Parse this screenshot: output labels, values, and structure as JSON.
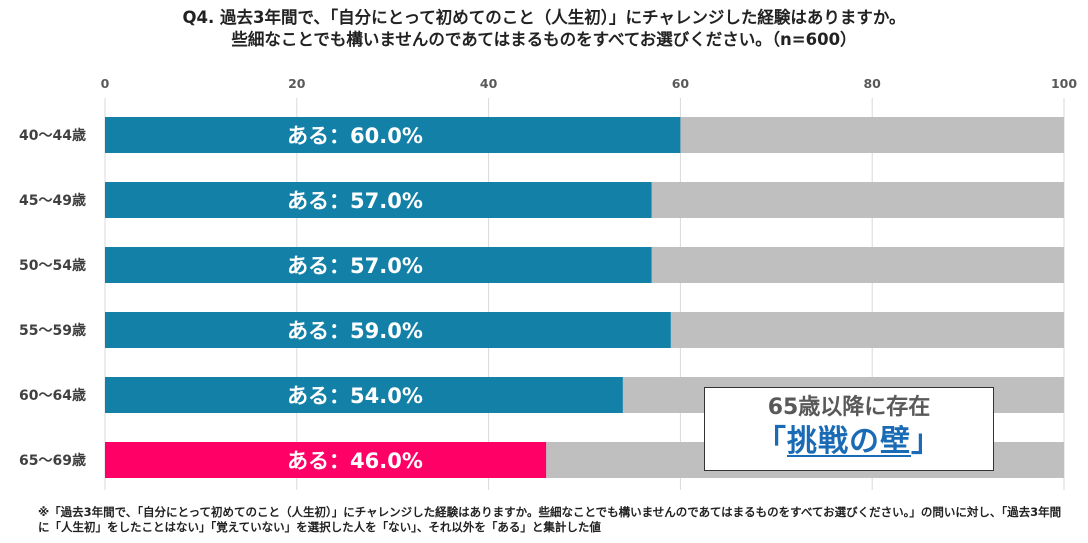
{
  "title": {
    "line1": "Q4.  過去3年間で、「自分にとって初めてのこと（人生初）」にチャレンジした経験はありますか。",
    "line2": "些細なことでも構いませんのであてはまるものをすべてお選びください。（n=600）"
  },
  "colors": {
    "bar": "#1380a8",
    "highlight": "#ff0066",
    "remainder": "#bfbfbf",
    "grid": "#d9d9d9",
    "callout_accent": "#1a6bb5"
  },
  "chart_data": {
    "type": "bar",
    "orientation": "horizontal",
    "stacked": true,
    "categories": [
      "40～44歳",
      "45～49歳",
      "50～54歳",
      "55～59歳",
      "60～64歳",
      "65～69歳"
    ],
    "series": [
      {
        "name": "ある",
        "values": [
          60.0,
          57.0,
          57.0,
          59.0,
          54.0,
          46.0
        ]
      },
      {
        "name": "ない",
        "values": [
          40.0,
          43.0,
          43.0,
          41.0,
          46.0,
          54.0
        ]
      }
    ],
    "highlight_category": "65～69歳",
    "data_labels": [
      "ある：60.0%",
      "ある：57.0%",
      "ある：57.0%",
      "ある：59.0%",
      "ある：54.0%",
      "ある：46.0%"
    ],
    "xlim": [
      0,
      100
    ],
    "xticks": [
      0,
      20,
      40,
      60,
      80,
      100
    ],
    "axis_position": "top",
    "grid": true
  },
  "callout": {
    "subtitle": "65歳以降に存在",
    "open_bracket": "「",
    "emphasis": "挑戦の壁",
    "close_bracket": "」"
  },
  "footnote": "※「過去3年間で、「自分にとって初めてのこと（人生初）」にチャレンジした経験はありますか。些細なことでも構いませんのであてはまるものをすべてお選びください。」の問いに対し、「過去3年間に「人生初」をしたことはない」「覚えていない」を選択した人を「ない」、それ以外を「ある」と集計した値"
}
